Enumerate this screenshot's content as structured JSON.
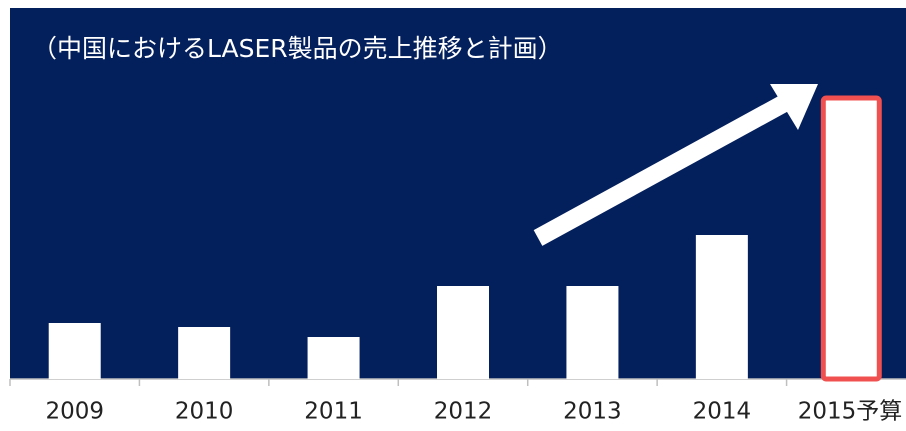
{
  "chart_data": {
    "type": "bar",
    "title": "（中国におけるLASER製品の売上推移と計画）",
    "categories": [
      "2009",
      "2010",
      "2011",
      "2012",
      "2013",
      "2014",
      "2015予算"
    ],
    "values": [
      56,
      52,
      42,
      93,
      93,
      144,
      281
    ],
    "color": "#ffffff",
    "background": "#031f5c",
    "highlight_index": 6,
    "highlight_color": "#f0504f",
    "ylim": [
      0,
      370
    ]
  }
}
